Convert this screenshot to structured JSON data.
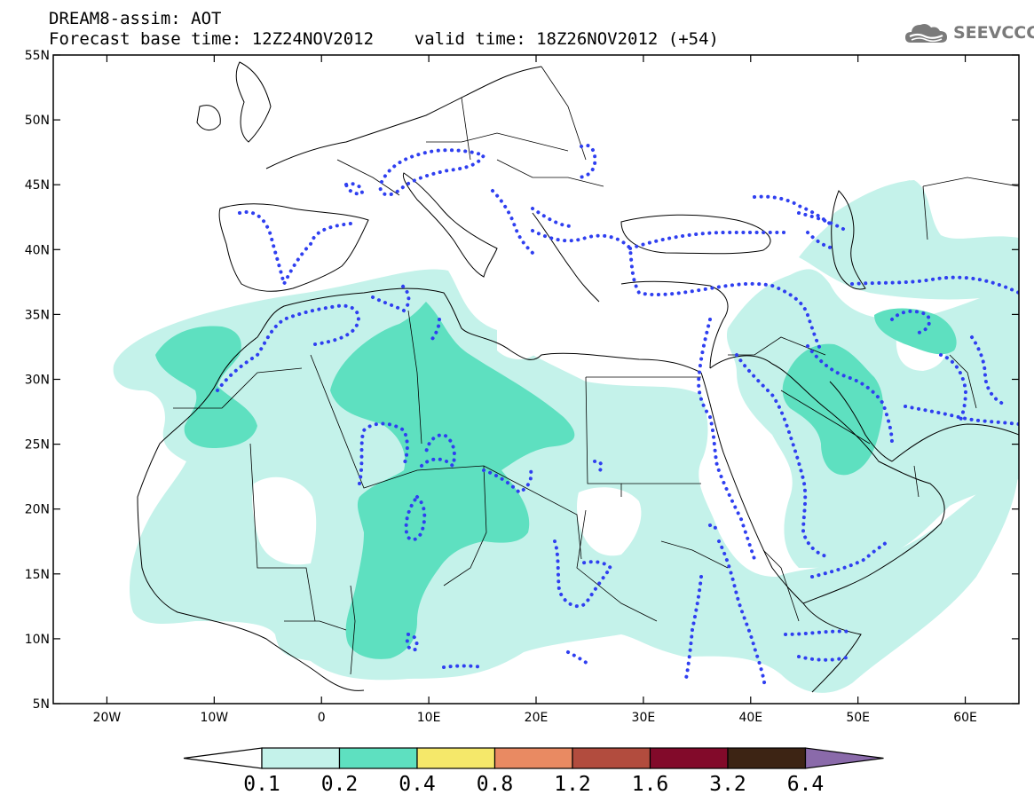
{
  "header": {
    "title_line1": "DREAM8-assim: AOT",
    "title_line2": "Forecast base time: 12Z24NOV2012    valid time: 18Z26NOV2012 (+54)"
  },
  "logo": {
    "text": "SEEVCCC",
    "icon": "cloud-icon",
    "color": "#7a7a7a"
  },
  "map": {
    "lon_range": [
      -25,
      65
    ],
    "lat_range": [
      5,
      55
    ],
    "lat_ticks": [
      {
        "value": 55,
        "label": "55N"
      },
      {
        "value": 50,
        "label": "50N"
      },
      {
        "value": 45,
        "label": "45N"
      },
      {
        "value": 40,
        "label": "40N"
      },
      {
        "value": 35,
        "label": "35N"
      },
      {
        "value": 30,
        "label": "30N"
      },
      {
        "value": 25,
        "label": "25N"
      },
      {
        "value": 20,
        "label": "20N"
      },
      {
        "value": 15,
        "label": "15N"
      },
      {
        "value": 10,
        "label": "10N"
      },
      {
        "value": 5,
        "label": "5N"
      }
    ],
    "lon_ticks": [
      {
        "value": -20,
        "label": "20W"
      },
      {
        "value": -10,
        "label": "10W"
      },
      {
        "value": 0,
        "label": "0"
      },
      {
        "value": 10,
        "label": "10E"
      },
      {
        "value": 20,
        "label": "20E"
      },
      {
        "value": 30,
        "label": "30E"
      },
      {
        "value": 40,
        "label": "40E"
      },
      {
        "value": 50,
        "label": "50E"
      },
      {
        "value": 60,
        "label": "60E"
      }
    ],
    "field": "AOT",
    "contour_style": "blue dotted lines",
    "colors": {
      "class_0_1": "#c4f2ea",
      "class_0_2": "#5ee0c0",
      "contour": "#2f3ff0"
    }
  },
  "legend": {
    "boundaries": [
      "0.1",
      "0.2",
      "0.4",
      "0.8",
      "1.2",
      "1.6",
      "3.2",
      "6.4"
    ],
    "colors": [
      "#c4f2ea",
      "#5ee0c0",
      "#f5e86a",
      "#e98a62",
      "#b24c3e",
      "#820a2a",
      "#3d2414",
      "#8a6aaa"
    ],
    "under_color": "#ffffff",
    "over_color": "#8a6aaa"
  }
}
